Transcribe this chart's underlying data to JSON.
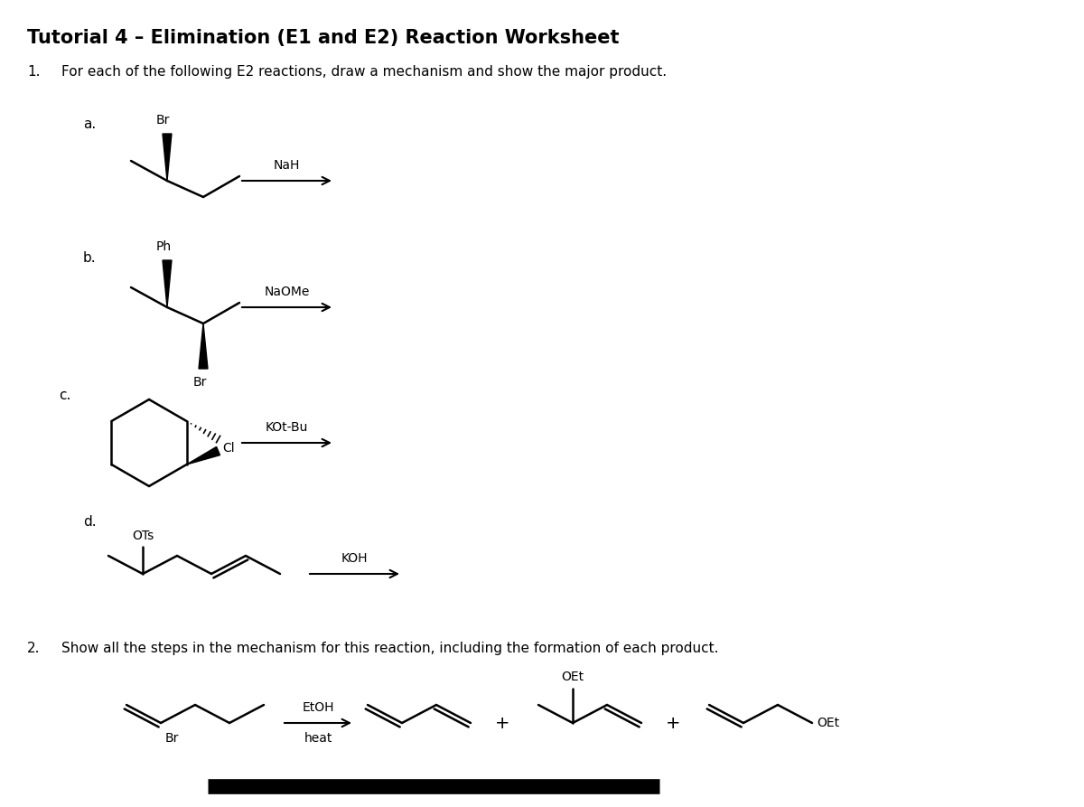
{
  "title": "Tutorial 4 – Elimination (E1 and E2) Reaction Worksheet",
  "title_fontsize": 15,
  "q1_text": "For each of the following E2 reactions, draw a mechanism and show the major product.",
  "q2_text": "Show all the steps in the mechanism for this reaction, including the formation of each product.",
  "background": "#ffffff",
  "text_color": "#000000",
  "lw": 1.8
}
